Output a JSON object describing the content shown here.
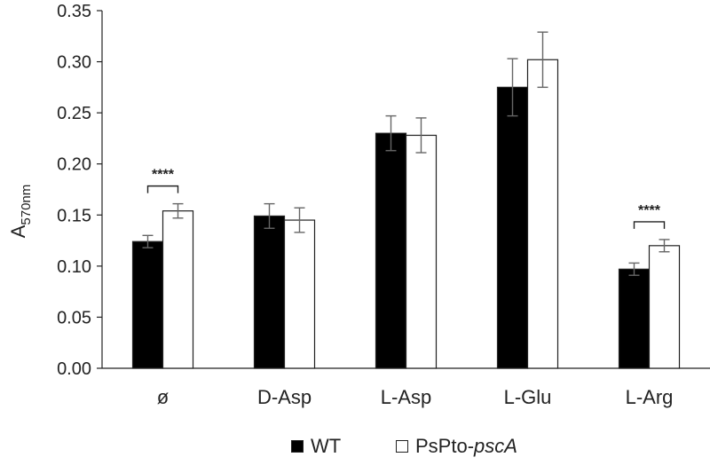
{
  "chart_data": {
    "type": "bar",
    "categories": [
      "ø",
      "D-Asp",
      "L-Asp",
      "L-Glu",
      "L-Arg"
    ],
    "series": [
      {
        "name": "WT",
        "color": "#000000",
        "values": [
          0.124,
          0.149,
          0.23,
          0.275,
          0.097
        ],
        "errors": [
          0.006,
          0.012,
          0.017,
          0.028,
          0.006
        ]
      },
      {
        "name": "PsPto-pscA",
        "color": "#ffffff",
        "values": [
          0.154,
          0.145,
          0.228,
          0.302,
          0.12
        ],
        "errors": [
          0.007,
          0.012,
          0.017,
          0.027,
          0.006
        ]
      }
    ],
    "ylabel": {
      "main": "A",
      "sub": "570nm"
    },
    "ylim": [
      0,
      0.35
    ],
    "yticks": [
      "0.00",
      "0.05",
      "0.10",
      "0.15",
      "0.20",
      "0.25",
      "0.30",
      "0.35"
    ],
    "annotations": [
      {
        "category": "ø",
        "text": "****"
      },
      {
        "category": "L-Arg",
        "text": "****"
      }
    ],
    "legend": {
      "position": "bottom",
      "wt_label": "WT",
      "mutant_prefix": "PsPto-",
      "mutant_italic": "pscA"
    },
    "grid": false
  }
}
